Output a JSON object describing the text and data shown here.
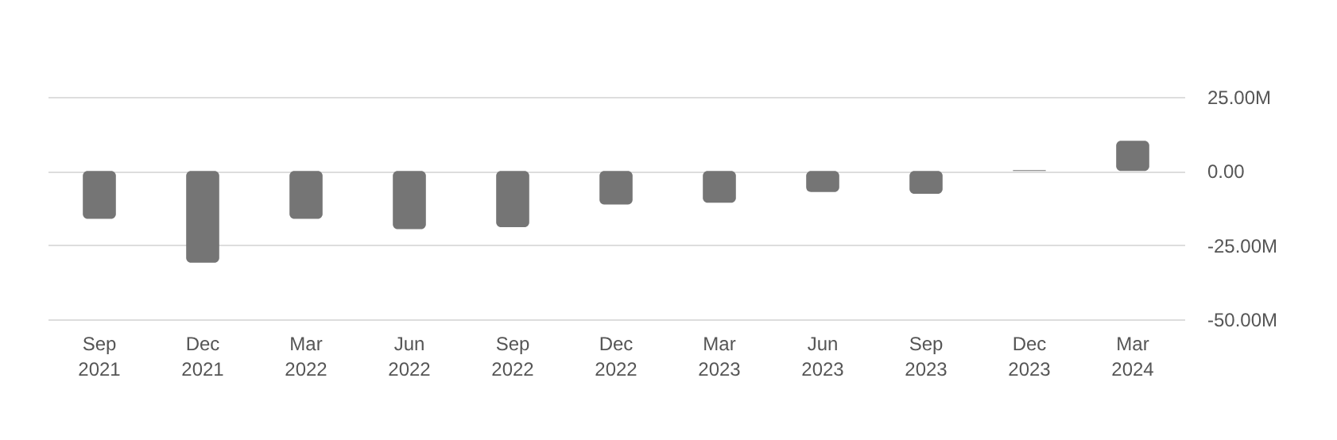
{
  "chart_data": {
    "type": "bar",
    "categories": [
      "Sep 2021",
      "Dec 2021",
      "Mar 2022",
      "Jun 2022",
      "Sep 2022",
      "Dec 2022",
      "Mar 2023",
      "Jun 2023",
      "Sep 2023",
      "Dec 2023",
      "Mar 2024"
    ],
    "series": [
      {
        "color": "#757575",
        "values": [
          -16.1,
          -30.9,
          -16.1,
          -19.6,
          -18.9,
          -11.3,
          -10.7,
          -7.1,
          -7.7,
          0.3,
          10.2
        ]
      }
    ],
    "ylim": [
      -50,
      25
    ],
    "yticks": [
      {
        "value": 25,
        "label": "25.00M"
      },
      {
        "value": 0,
        "label": "0.00"
      },
      {
        "value": -25,
        "label": "-25.00M"
      },
      {
        "value": -50,
        "label": "-50.00M"
      }
    ],
    "grid": "y",
    "legend": false
  }
}
